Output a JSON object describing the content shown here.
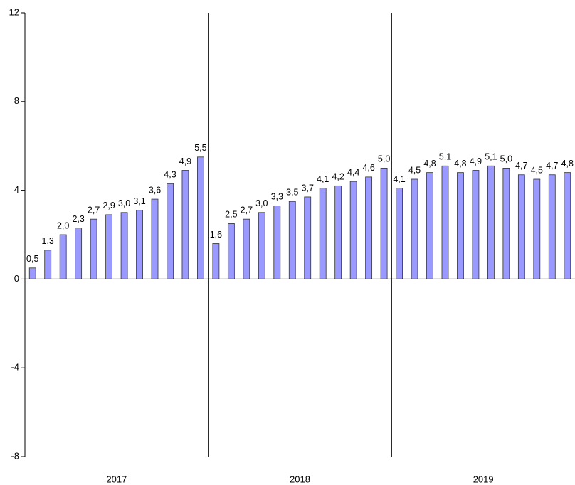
{
  "chart_data": {
    "type": "bar",
    "categories": [
      null,
      null,
      null,
      null,
      null,
      null,
      null,
      null,
      null,
      null,
      null,
      null,
      null,
      null,
      null,
      null,
      null,
      null,
      null,
      null,
      null,
      null,
      null,
      null,
      null,
      null,
      null,
      null,
      null,
      null,
      null,
      null,
      null,
      null,
      null,
      null
    ],
    "x_groups": [
      "2017",
      "2018",
      "2019"
    ],
    "values": [
      0.5,
      1.3,
      2.0,
      2.3,
      2.7,
      2.9,
      3.0,
      3.1,
      3.6,
      4.3,
      4.9,
      5.5,
      1.6,
      2.5,
      2.7,
      3.0,
      3.3,
      3.5,
      3.7,
      4.1,
      4.2,
      4.4,
      4.6,
      5.0,
      4.1,
      4.5,
      4.8,
      5.1,
      4.8,
      4.9,
      5.1,
      5.0,
      4.7,
      4.5,
      4.7,
      4.8
    ],
    "value_labels": [
      "0,5",
      "1,3",
      "2,0",
      "2,3",
      "2,7",
      "2,9",
      "3,0",
      "3,1",
      "3,6",
      "4,3",
      "4,9",
      "5,5",
      "1,6",
      "2,5",
      "2,7",
      "3,0",
      "3,3",
      "3,5",
      "3,7",
      "4,1",
      "4,2",
      "4,4",
      "4,6",
      "5,0",
      "4,1",
      "4,5",
      "4,8",
      "5,1",
      "4,8",
      "4,9",
      "5,1",
      "5,0",
      "4,7",
      "4,5",
      "4,7",
      "4,8"
    ],
    "color": "#9999ff",
    "ylim": [
      -8,
      12
    ],
    "yticks": [
      -8,
      -4,
      0,
      4,
      8,
      12
    ],
    "grid": false
  }
}
